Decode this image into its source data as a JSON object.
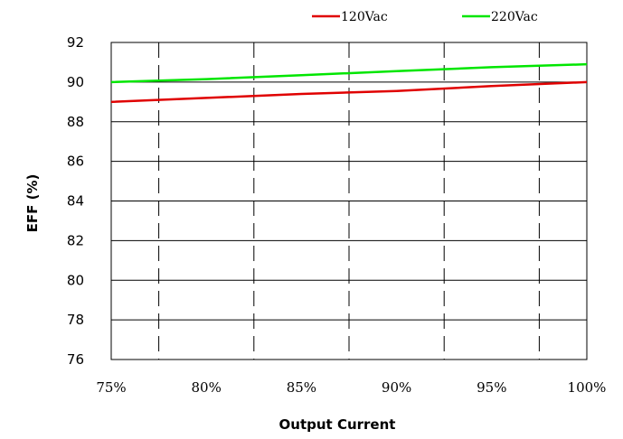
{
  "chart_data": {
    "type": "line",
    "xlabel": "Output Current",
    "ylabel": "EFF (%)",
    "x": [
      75,
      80,
      85,
      90,
      95,
      100
    ],
    "x_tick_labels": [
      "75%",
      "80%",
      "85%",
      "90%",
      "95%",
      "100%"
    ],
    "xlim": [
      75,
      100
    ],
    "ylim": [
      76,
      92
    ],
    "y_ticks": [
      76,
      78,
      80,
      82,
      84,
      86,
      88,
      90,
      92
    ],
    "y_tick_labels": [
      "76",
      "78",
      "80",
      "82",
      "84",
      "86",
      "88",
      "90",
      "92"
    ],
    "grid": true,
    "legend_position": "top-right",
    "series": [
      {
        "name": "120Vac",
        "color": "#e00000",
        "values": [
          89.0,
          89.2,
          89.4,
          89.55,
          89.8,
          90.0
        ]
      },
      {
        "name": "220Vac",
        "color": "#00e600",
        "values": [
          90.0,
          90.15,
          90.35,
          90.55,
          90.75,
          90.9
        ]
      }
    ]
  }
}
